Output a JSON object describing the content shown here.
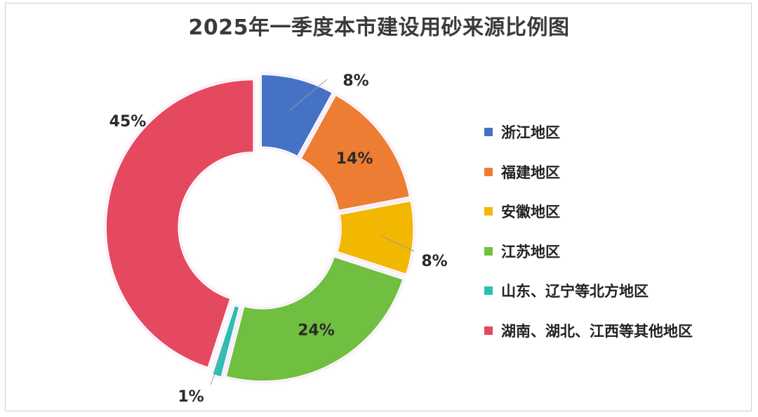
{
  "chart_data": {
    "type": "pie",
    "title": "2025年一季度本市建设用砂来源比例图",
    "categories": [
      "浙江地区",
      "福建地区",
      "安徽地区",
      "江苏地区",
      "山东、辽宁等北方地区",
      "湖南、湖北、江西等其他地区"
    ],
    "values": [
      8,
      14,
      8,
      24,
      1,
      45
    ],
    "labels": [
      "8%",
      "14%",
      "8%",
      "24%",
      "1%",
      "45%"
    ],
    "colors": [
      "#4472c4",
      "#ed7d31",
      "#f2b705",
      "#70bf41",
      "#2bbfb0",
      "#e4485e"
    ],
    "donut": true,
    "exploded": true,
    "legend_position": "right"
  }
}
